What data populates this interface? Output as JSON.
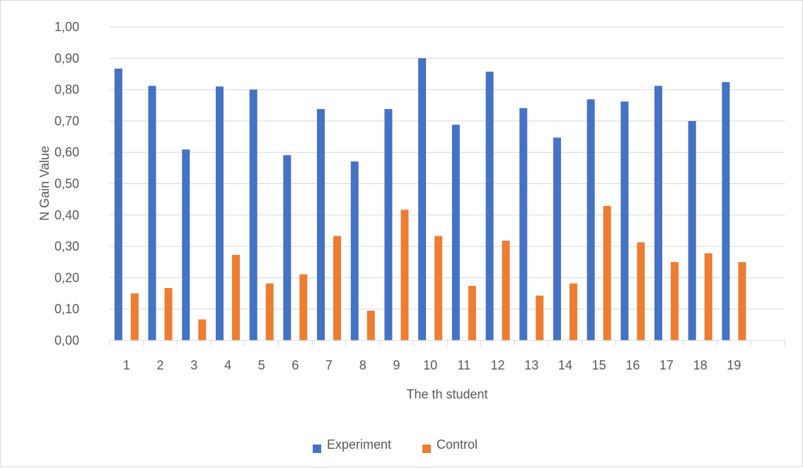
{
  "colors": {
    "experiment": "#4472C4",
    "control": "#ED7D31",
    "grid": "#d9d9d9",
    "text": "#595959"
  },
  "chart_data": {
    "type": "bar",
    "title": "",
    "xlabel": "The th student",
    "ylabel": "N Gain Value",
    "ylim": [
      0,
      1.0
    ],
    "ytick_step": 0.1,
    "ytick_labels": [
      "0,00",
      "0,10",
      "0,20",
      "0,30",
      "0,40",
      "0,50",
      "0,60",
      "0,70",
      "0,80",
      "0,90",
      "1,00"
    ],
    "grid": true,
    "legend_position": "bottom",
    "categories": [
      "1",
      "2",
      "3",
      "4",
      "5",
      "6",
      "7",
      "8",
      "9",
      "10",
      "11",
      "12",
      "13",
      "14",
      "15",
      "16",
      "17",
      "18",
      "19"
    ],
    "series": [
      {
        "name": "Experiment",
        "values": [
          0.867,
          0.812,
          0.609,
          0.81,
          0.8,
          0.591,
          0.738,
          0.571,
          0.738,
          0.9,
          0.688,
          0.857,
          0.741,
          0.647,
          0.769,
          0.762,
          0.812,
          0.7,
          0.824
        ]
      },
      {
        "name": "Control",
        "values": [
          0.15,
          0.167,
          0.067,
          0.273,
          0.182,
          0.211,
          0.333,
          0.095,
          0.417,
          0.333,
          0.174,
          0.318,
          0.143,
          0.182,
          0.429,
          0.313,
          0.25,
          0.278,
          0.25
        ]
      }
    ]
  }
}
